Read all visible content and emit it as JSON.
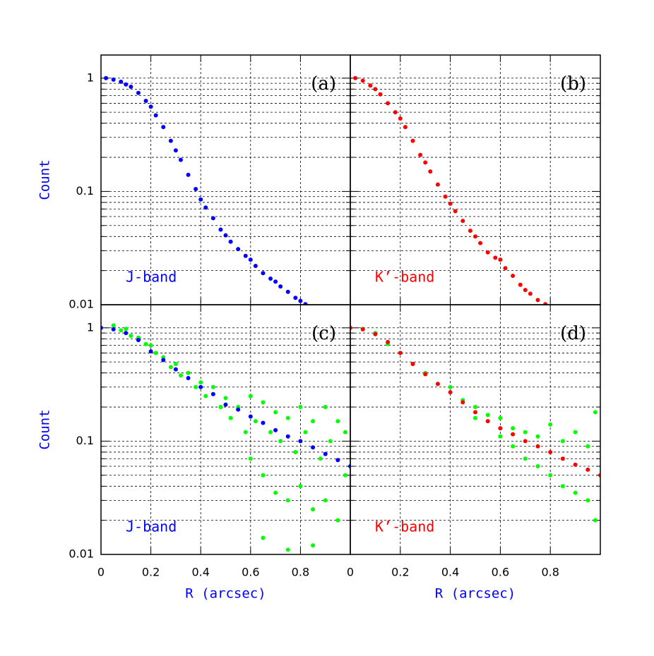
{
  "chart_data": [
    {
      "type": "scatter",
      "panel_label": "(a)",
      "band_label": "J-band",
      "band_color": "#0000ff",
      "ylabel": "Count",
      "xlim": [
        0,
        1
      ],
      "ylim": [
        0.01,
        1.6
      ],
      "log_y": true,
      "grid": true,
      "xticks": [
        0,
        0.2,
        0.4,
        0.6,
        0.8
      ],
      "yticks": [
        0.01,
        0.1,
        1
      ],
      "minor_yticks": [
        0.02,
        0.03,
        0.04,
        0.05,
        0.06,
        0.07,
        0.08,
        0.09,
        0.2,
        0.3,
        0.4,
        0.5,
        0.6,
        0.7,
        0.8,
        0.9
      ],
      "show_xtick_labels": false,
      "show_ytick_labels": true,
      "series": [
        {
          "color": "#0000ff",
          "x": [
            0.02,
            0.05,
            0.08,
            0.1,
            0.12,
            0.15,
            0.18,
            0.2,
            0.22,
            0.25,
            0.28,
            0.3,
            0.32,
            0.35,
            0.38,
            0.4,
            0.42,
            0.45,
            0.48,
            0.5,
            0.52,
            0.55,
            0.58,
            0.6,
            0.62,
            0.65,
            0.68,
            0.7,
            0.72,
            0.75,
            0.78,
            0.8,
            0.82
          ],
          "values": [
            1.0,
            0.97,
            0.93,
            0.88,
            0.84,
            0.74,
            0.63,
            0.56,
            0.47,
            0.37,
            0.28,
            0.23,
            0.19,
            0.14,
            0.105,
            0.085,
            0.072,
            0.058,
            0.046,
            0.041,
            0.036,
            0.031,
            0.027,
            0.025,
            0.022,
            0.019,
            0.017,
            0.016,
            0.0145,
            0.013,
            0.0115,
            0.0108,
            0.0101
          ]
        }
      ]
    },
    {
      "type": "scatter",
      "panel_label": "(b)",
      "band_label": "K’-band",
      "band_color": "#ff0000",
      "xlim": [
        0,
        1
      ],
      "ylim": [
        0.01,
        1.6
      ],
      "log_y": true,
      "grid": true,
      "xticks": [
        0,
        0.2,
        0.4,
        0.6,
        0.8
      ],
      "yticks": [
        0.01,
        0.1,
        1
      ],
      "minor_yticks": [
        0.02,
        0.03,
        0.04,
        0.05,
        0.06,
        0.07,
        0.08,
        0.09,
        0.2,
        0.3,
        0.4,
        0.5,
        0.6,
        0.7,
        0.8,
        0.9
      ],
      "show_xtick_labels": false,
      "show_ytick_labels": false,
      "series": [
        {
          "color": "#ff0000",
          "x": [
            0.02,
            0.05,
            0.08,
            0.1,
            0.12,
            0.15,
            0.18,
            0.2,
            0.22,
            0.25,
            0.28,
            0.3,
            0.32,
            0.35,
            0.38,
            0.4,
            0.42,
            0.45,
            0.48,
            0.5,
            0.52,
            0.55,
            0.58,
            0.6,
            0.62,
            0.65,
            0.68,
            0.7,
            0.72,
            0.75,
            0.78
          ],
          "values": [
            1.0,
            0.95,
            0.86,
            0.8,
            0.72,
            0.6,
            0.5,
            0.44,
            0.37,
            0.28,
            0.21,
            0.18,
            0.15,
            0.115,
            0.09,
            0.078,
            0.067,
            0.055,
            0.045,
            0.04,
            0.035,
            0.029,
            0.026,
            0.025,
            0.021,
            0.018,
            0.015,
            0.0135,
            0.0125,
            0.011,
            0.0101
          ]
        }
      ]
    },
    {
      "type": "scatter",
      "panel_label": "(c)",
      "band_label": "J-band",
      "band_color": "#0000ff",
      "ylabel": "Count",
      "xlabel": "R (arcsec)",
      "xlim": [
        0,
        1
      ],
      "ylim": [
        0.01,
        1.6
      ],
      "log_y": true,
      "grid": true,
      "xticks": [
        0,
        0.2,
        0.4,
        0.6,
        0.8
      ],
      "yticks": [
        0.01,
        0.1,
        1
      ],
      "minor_yticks": [
        0.02,
        0.03,
        0.04,
        0.05,
        0.06,
        0.07,
        0.08,
        0.09,
        0.2,
        0.3,
        0.4,
        0.5,
        0.6,
        0.7,
        0.8,
        0.9
      ],
      "show_xtick_labels": true,
      "show_ytick_labels": true,
      "series": [
        {
          "color": "#00ff00",
          "x": [
            0.05,
            0.08,
            0.1,
            0.12,
            0.15,
            0.18,
            0.2,
            0.22,
            0.25,
            0.28,
            0.3,
            0.32,
            0.35,
            0.38,
            0.4,
            0.42,
            0.45,
            0.48,
            0.5,
            0.52,
            0.55,
            0.58,
            0.6,
            0.6,
            0.62,
            0.65,
            0.65,
            0.68,
            0.7,
            0.7,
            0.72,
            0.75,
            0.75,
            0.78,
            0.8,
            0.8,
            0.82,
            0.85,
            0.85,
            0.88,
            0.9,
            0.9,
            0.92,
            0.95,
            0.95,
            0.98,
            0.98,
            0.65,
            0.75,
            0.85
          ],
          "values": [
            1.05,
            0.95,
            0.98,
            0.85,
            0.82,
            0.72,
            0.7,
            0.6,
            0.55,
            0.45,
            0.48,
            0.38,
            0.4,
            0.3,
            0.33,
            0.25,
            0.3,
            0.2,
            0.24,
            0.16,
            0.2,
            0.12,
            0.25,
            0.07,
            0.15,
            0.22,
            0.05,
            0.12,
            0.18,
            0.035,
            0.1,
            0.16,
            0.03,
            0.08,
            0.2,
            0.04,
            0.12,
            0.15,
            0.025,
            0.07,
            0.2,
            0.03,
            0.1,
            0.15,
            0.02,
            0.12,
            0.05,
            0.014,
            0.011,
            0.012
          ]
        },
        {
          "color": "#0000ff",
          "x": [
            0,
            0.05,
            0.1,
            0.15,
            0.2,
            0.25,
            0.3,
            0.35,
            0.4,
            0.45,
            0.5,
            0.55,
            0.6,
            0.65,
            0.7,
            0.75,
            0.8,
            0.85,
            0.9,
            0.95,
            1.0
          ],
          "values": [
            1.0,
            0.97,
            0.9,
            0.78,
            0.62,
            0.52,
            0.43,
            0.36,
            0.3,
            0.26,
            0.21,
            0.19,
            0.165,
            0.145,
            0.125,
            0.11,
            0.1,
            0.088,
            0.077,
            0.068,
            0.06
          ]
        }
      ]
    },
    {
      "type": "scatter",
      "panel_label": "(d)",
      "band_label": "K’-band",
      "band_color": "#ff0000",
      "xlabel": "R (arcsec)",
      "xlim": [
        0,
        1
      ],
      "ylim": [
        0.01,
        1.6
      ],
      "log_y": true,
      "grid": true,
      "xticks": [
        0,
        0.2,
        0.4,
        0.6,
        0.8
      ],
      "yticks": [
        0.01,
        0.1,
        1
      ],
      "minor_yticks": [
        0.02,
        0.03,
        0.04,
        0.05,
        0.06,
        0.07,
        0.08,
        0.09,
        0.2,
        0.3,
        0.4,
        0.5,
        0.6,
        0.7,
        0.8,
        0.9
      ],
      "show_xtick_labels": true,
      "show_ytick_labels": false,
      "series": [
        {
          "color": "#00ff00",
          "x": [
            0.05,
            0.1,
            0.15,
            0.2,
            0.25,
            0.3,
            0.35,
            0.4,
            0.45,
            0.5,
            0.5,
            0.55,
            0.6,
            0.6,
            0.65,
            0.65,
            0.7,
            0.7,
            0.75,
            0.75,
            0.8,
            0.8,
            0.85,
            0.85,
            0.9,
            0.9,
            0.95,
            0.95,
            0.98,
            0.98
          ],
          "values": [
            0.98,
            0.9,
            0.72,
            0.6,
            0.48,
            0.4,
            0.32,
            0.3,
            0.23,
            0.2,
            0.16,
            0.17,
            0.16,
            0.11,
            0.13,
            0.09,
            0.12,
            0.07,
            0.11,
            0.06,
            0.14,
            0.05,
            0.1,
            0.04,
            0.12,
            0.035,
            0.09,
            0.03,
            0.18,
            0.02
          ]
        },
        {
          "color": "#ff0000",
          "x": [
            0,
            0.05,
            0.1,
            0.15,
            0.2,
            0.25,
            0.3,
            0.35,
            0.4,
            0.45,
            0.5,
            0.55,
            0.6,
            0.65,
            0.7,
            0.75,
            0.8,
            0.85,
            0.9,
            0.95,
            1.0
          ],
          "values": [
            1.0,
            0.97,
            0.88,
            0.75,
            0.6,
            0.48,
            0.39,
            0.32,
            0.27,
            0.22,
            0.18,
            0.15,
            0.13,
            0.115,
            0.1,
            0.09,
            0.08,
            0.07,
            0.062,
            0.056,
            0.05
          ]
        }
      ]
    }
  ]
}
